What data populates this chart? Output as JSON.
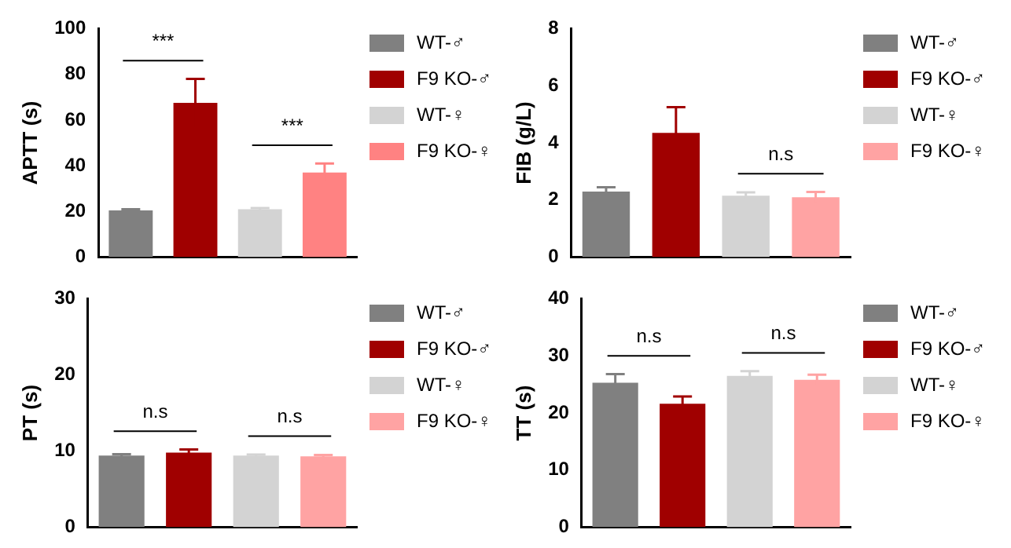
{
  "chart_data": [
    {
      "type": "bar",
      "ylabel": "APTT (s)",
      "categories": [
        null,
        null,
        null,
        null
      ],
      "ylim": [
        0,
        100
      ],
      "yticks": [
        0,
        20,
        40,
        60,
        80,
        100
      ],
      "grid": false,
      "legend": "right",
      "tick_labels": "y",
      "annotations": [
        "***",
        "***"
      ],
      "series": [
        {
          "name": "WT-♂",
          "color": "#808080",
          "values": [
            20.5,
            null,
            null,
            null
          ],
          "errors": [
            0.5,
            null,
            null,
            null
          ]
        },
        {
          "name": "F9 KO-♂",
          "color": "#a00000",
          "values": [
            null,
            67.5,
            null,
            null
          ],
          "errors": [
            null,
            10.5,
            null,
            null
          ]
        },
        {
          "name": "WT-♀",
          "color": "#d3d3d3",
          "values": [
            null,
            null,
            21,
            null
          ],
          "errors": [
            null,
            null,
            0.5,
            null
          ]
        },
        {
          "name": "F9 KO-♀",
          "color": "#ff8282",
          "values": [
            null,
            null,
            null,
            37
          ],
          "errors": [
            null,
            null,
            null,
            4
          ]
        }
      ]
    },
    {
      "type": "bar",
      "ylabel": "FIB (g/L)",
      "categories": [
        null,
        null,
        null,
        null
      ],
      "ylim": [
        0,
        8
      ],
      "yticks": [
        0,
        2,
        4,
        6,
        8
      ],
      "grid": false,
      "legend": "right",
      "tick_labels": "y",
      "annotations": [
        "n.s"
      ],
      "series": [
        {
          "name": "WT-♂",
          "color": "#808080",
          "values": [
            2.3,
            null,
            null,
            null
          ],
          "errors": [
            0.15,
            null,
            null,
            null
          ]
        },
        {
          "name": "F9 KO-♂",
          "color": "#a00000",
          "values": [
            null,
            4.35,
            null,
            null
          ],
          "errors": [
            null,
            0.9,
            null,
            null
          ]
        },
        {
          "name": "WT-♀",
          "color": "#d3d3d3",
          "values": [
            null,
            null,
            2.15,
            null
          ],
          "errors": [
            null,
            null,
            0.12,
            null
          ]
        },
        {
          "name": "F9 KO-♀",
          "color": "#ffa3a3",
          "values": [
            null,
            null,
            null,
            2.1
          ],
          "errors": [
            null,
            null,
            null,
            0.18
          ]
        }
      ]
    },
    {
      "type": "bar",
      "ylabel": "PT (s)",
      "categories": [
        null,
        null,
        null,
        null
      ],
      "ylim": [
        0,
        30
      ],
      "yticks": [
        0,
        10,
        20,
        30
      ],
      "grid": false,
      "legend": "right",
      "tick_labels": "y",
      "annotations": [
        "n.s",
        "n.s"
      ],
      "series": [
        {
          "name": "WT-♂",
          "color": "#808080",
          "values": [
            9.4,
            null,
            null,
            null
          ],
          "errors": [
            0.2,
            null,
            null,
            null
          ]
        },
        {
          "name": "F9 KO-♂",
          "color": "#a00000",
          "values": [
            null,
            9.8,
            null,
            null
          ],
          "errors": [
            null,
            0.4,
            null,
            null
          ]
        },
        {
          "name": "WT-♀",
          "color": "#d3d3d3",
          "values": [
            null,
            null,
            9.4,
            null
          ],
          "errors": [
            null,
            null,
            0.15,
            null
          ]
        },
        {
          "name": "F9 KO-♀",
          "color": "#ffa3a3",
          "values": [
            null,
            null,
            null,
            9.3
          ],
          "errors": [
            null,
            null,
            null,
            0.2
          ]
        }
      ]
    },
    {
      "type": "bar",
      "ylabel": "TT (s)",
      "categories": [
        null,
        null,
        null,
        null
      ],
      "ylim": [
        0,
        40
      ],
      "yticks": [
        0,
        10,
        20,
        30,
        40
      ],
      "grid": false,
      "legend": "right",
      "tick_labels": "y",
      "annotations": [
        "n.s",
        "n.s"
      ],
      "series": [
        {
          "name": "WT-♂",
          "color": "#808080",
          "values": [
            25.3,
            null,
            null,
            null
          ],
          "errors": [
            1.5,
            null,
            null,
            null
          ]
        },
        {
          "name": "F9 KO-♂",
          "color": "#a00000",
          "values": [
            null,
            21.6,
            null,
            null
          ],
          "errors": [
            null,
            1.3,
            null,
            null
          ]
        },
        {
          "name": "WT-♀",
          "color": "#d3d3d3",
          "values": [
            null,
            null,
            26.5,
            null
          ],
          "errors": [
            null,
            null,
            0.8,
            null
          ]
        },
        {
          "name": "F9 KO-♀",
          "color": "#ffa3a3",
          "values": [
            null,
            null,
            null,
            25.8
          ],
          "errors": [
            null,
            null,
            null,
            0.9
          ]
        }
      ]
    }
  ]
}
